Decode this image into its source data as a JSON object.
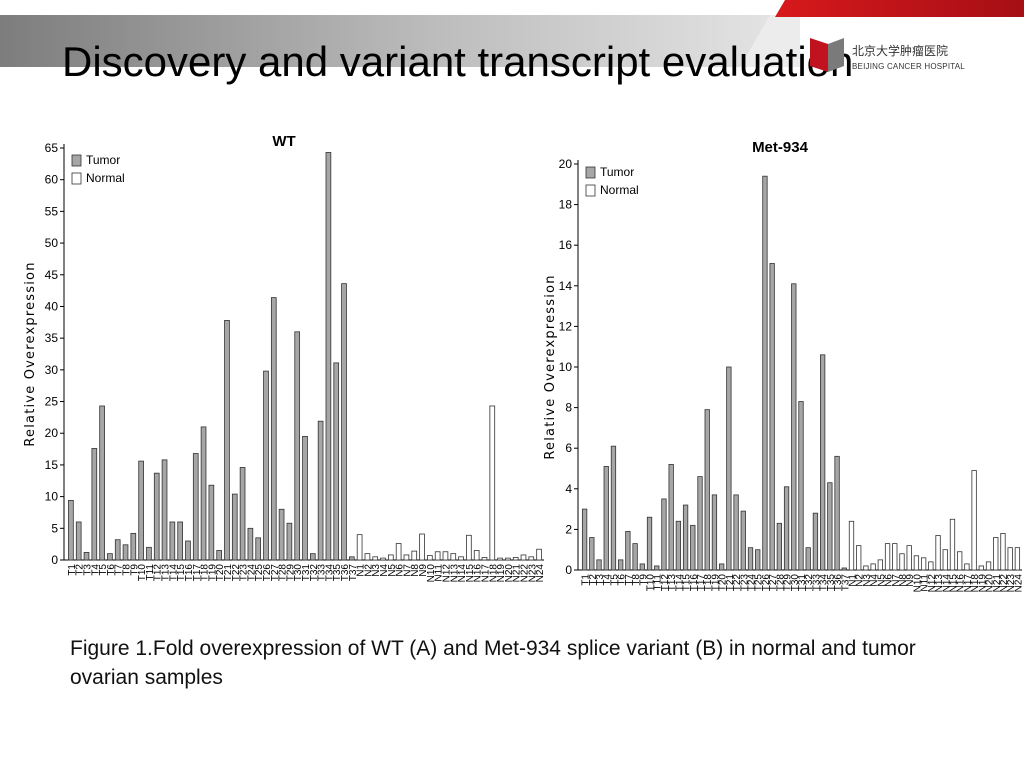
{
  "slide": {
    "title": "Discovery and variant transcript evaluation",
    "logo_cn": "北京大学肿瘤医院",
    "logo_en": "BEIJING CANCER HOSPITAL",
    "caption": "Figure 1.Fold overexpression of WT (A) and Met-934 splice variant (B) in normal and tumor ovarian samples"
  },
  "colors": {
    "tumor_fill": "#a6a6a6",
    "normal_fill": "#ffffff",
    "bar_stroke": "#333333",
    "band_dark": "#8c8c8c",
    "band_light": "#d9d9d9",
    "accent_red": "#c1121f"
  },
  "chart_data": [
    {
      "type": "bar",
      "title": "WT",
      "ylabel": "Relative Overexpression",
      "ylim": [
        0,
        65
      ],
      "yticks": [
        0,
        5,
        10,
        15,
        20,
        25,
        30,
        35,
        40,
        45,
        50,
        55,
        60,
        65
      ],
      "legend": [
        "Tumor",
        "Normal"
      ],
      "legend_position": "top-left",
      "series": [
        {
          "name": "Tumor",
          "categories": [
            "T1",
            "T2",
            "T3",
            "T4",
            "T5",
            "T6",
            "T7",
            "T8",
            "T9",
            "T10",
            "T11",
            "T12",
            "T13",
            "T14",
            "T15",
            "T16",
            "T17",
            "T18",
            "T19",
            "T20",
            "T21",
            "T22",
            "T23",
            "T24",
            "T25",
            "T26",
            "T27",
            "T28",
            "T29",
            "T30",
            "T31",
            "T32",
            "T33",
            "T34",
            "T35",
            "T36",
            "T37"
          ],
          "values": [
            9.4,
            6,
            1.2,
            17.6,
            24.3,
            1,
            3.2,
            2.4,
            4.2,
            15.6,
            2,
            13.7,
            15.8,
            6,
            6,
            3,
            16.8,
            21,
            11.8,
            1.5,
            37.8,
            10.4,
            14.6,
            5,
            3.5,
            29.8,
            41.4,
            8,
            5.8,
            36,
            19.5,
            1,
            21.9,
            64.3,
            31.1,
            43.6,
            0.5
          ]
        },
        {
          "name": "Normal",
          "categories": [
            "N1",
            "N2",
            "N3",
            "N4",
            "N5",
            "N6",
            "N7",
            "N8",
            "N9",
            "N10",
            "N11",
            "N12",
            "N13",
            "N14",
            "N15",
            "N16",
            "N17",
            "N18",
            "N19",
            "N20",
            "N21",
            "N22",
            "N23",
            "N24"
          ],
          "values": [
            4,
            1,
            0.5,
            0.3,
            0.8,
            2.6,
            0.8,
            1.4,
            4.1,
            0.7,
            1.3,
            1.3,
            1,
            0.5,
            3.9,
            1.5,
            0.4,
            24.3,
            0.3,
            0.3,
            0.4,
            0.8,
            0.5,
            1.7
          ]
        }
      ]
    },
    {
      "type": "bar",
      "title": "Met-934",
      "ylabel": "Relative Overexpression",
      "ylim": [
        0,
        20
      ],
      "yticks": [
        0,
        2,
        4,
        6,
        8,
        10,
        12,
        14,
        16,
        18,
        20
      ],
      "legend": [
        "Tumor",
        "Normal"
      ],
      "legend_position": "top-left",
      "series": [
        {
          "name": "Tumor",
          "categories": [
            "T1",
            "T2",
            "T3",
            "T4",
            "T5",
            "T6",
            "T7",
            "T8",
            "T9",
            "T10",
            "T11",
            "T12",
            "T13",
            "T14",
            "T15",
            "T16",
            "T17",
            "T18",
            "T19",
            "T20",
            "T21",
            "T22",
            "T23",
            "T24",
            "T25",
            "T26",
            "T27",
            "T28",
            "T29",
            "T30",
            "T31",
            "T32",
            "T33",
            "T34",
            "T35",
            "T36",
            "T37"
          ],
          "values": [
            3,
            1.6,
            0.5,
            5.1,
            6.1,
            0.5,
            1.9,
            1.3,
            0.3,
            2.6,
            0.2,
            3.5,
            5.2,
            2.4,
            3.2,
            2.2,
            4.6,
            7.9,
            3.7,
            0.3,
            10,
            3.7,
            2.9,
            1.1,
            1,
            19.4,
            15.1,
            2.3,
            4.1,
            14.1,
            8.3,
            1.1,
            2.8,
            10.6,
            4.3,
            5.6,
            0.1
          ]
        },
        {
          "name": "Normal",
          "categories": [
            "N1",
            "N2",
            "N3",
            "N4",
            "N5",
            "N6",
            "N7",
            "N8",
            "N9",
            "N10",
            "N11",
            "N12",
            "N13",
            "N14",
            "N15",
            "N16",
            "N17",
            "N18",
            "N19",
            "N20",
            "N21",
            "N22",
            "N23",
            "N24"
          ],
          "values": [
            2.4,
            1.2,
            0.2,
            0.3,
            0.5,
            1.3,
            1.3,
            0.8,
            1.2,
            0.7,
            0.6,
            0.4,
            1.7,
            1,
            2.5,
            0.9,
            0.3,
            4.9,
            0.2,
            0.4,
            1.6,
            1.8,
            1.1,
            1.1
          ]
        }
      ]
    }
  ]
}
